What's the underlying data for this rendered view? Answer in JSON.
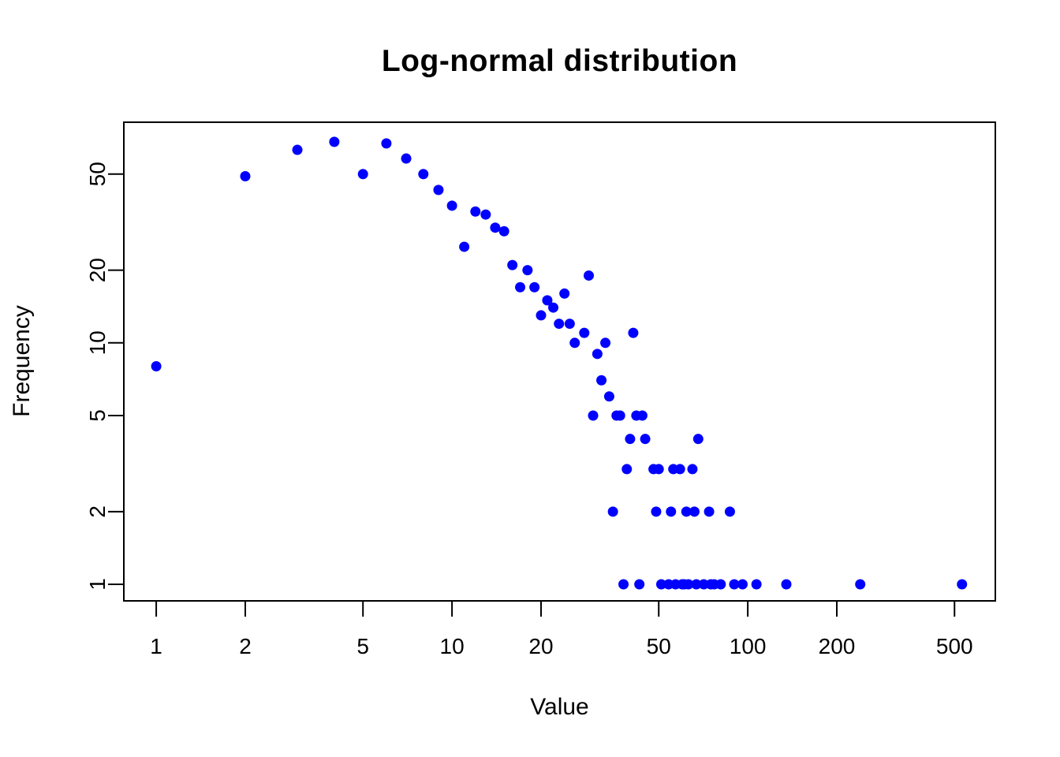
{
  "chart_data": {
    "type": "scatter",
    "title": "Log-normal distribution",
    "xlabel": "Value",
    "ylabel": "Frequency",
    "x_scale": "log",
    "y_scale": "log",
    "grid": false,
    "legend": null,
    "x_ticks": [
      1,
      2,
      5,
      10,
      20,
      50,
      100,
      200,
      500
    ],
    "y_ticks": [
      1,
      2,
      5,
      10,
      20,
      50
    ],
    "xlim": [
      0.777,
      687
    ],
    "ylim": [
      0.854,
      82
    ],
    "point_color": "#0000FF",
    "points": [
      [
        1,
        8
      ],
      [
        2,
        49
      ],
      [
        3,
        63
      ],
      [
        4,
        68
      ],
      [
        5,
        50
      ],
      [
        6,
        67
      ],
      [
        7,
        58
      ],
      [
        8,
        50
      ],
      [
        9,
        43
      ],
      [
        10,
        37
      ],
      [
        11,
        25
      ],
      [
        12,
        35
      ],
      [
        13,
        34
      ],
      [
        14,
        30
      ],
      [
        15,
        29
      ],
      [
        16,
        21
      ],
      [
        17,
        17
      ],
      [
        18,
        20
      ],
      [
        19,
        17
      ],
      [
        20,
        13
      ],
      [
        21,
        15
      ],
      [
        22,
        14
      ],
      [
        23,
        12
      ],
      [
        24,
        16
      ],
      [
        25,
        12
      ],
      [
        26,
        10
      ],
      [
        28,
        11
      ],
      [
        29,
        19
      ],
      [
        30,
        5
      ],
      [
        31,
        9
      ],
      [
        32,
        7
      ],
      [
        33,
        10
      ],
      [
        34,
        6
      ],
      [
        35,
        2
      ],
      [
        36,
        5
      ],
      [
        37,
        5
      ],
      [
        38,
        1
      ],
      [
        39,
        3
      ],
      [
        40,
        4
      ],
      [
        41,
        11
      ],
      [
        42,
        5
      ],
      [
        43,
        1
      ],
      [
        44,
        5
      ],
      [
        45,
        4
      ],
      [
        48,
        3
      ],
      [
        49,
        2
      ],
      [
        50,
        3
      ],
      [
        51,
        1
      ],
      [
        54,
        1
      ],
      [
        55,
        2
      ],
      [
        56,
        3
      ],
      [
        57,
        1
      ],
      [
        59,
        3
      ],
      [
        60,
        1
      ],
      [
        61,
        1
      ],
      [
        62,
        2
      ],
      [
        63,
        1
      ],
      [
        65,
        3
      ],
      [
        66,
        2
      ],
      [
        67,
        1
      ],
      [
        68,
        4
      ],
      [
        71,
        1
      ],
      [
        74,
        2
      ],
      [
        75,
        1
      ],
      [
        77,
        1
      ],
      [
        81,
        1
      ],
      [
        87,
        2
      ],
      [
        90,
        1
      ],
      [
        96,
        1
      ],
      [
        107,
        1
      ],
      [
        135,
        1
      ],
      [
        240,
        1
      ],
      [
        530,
        1
      ]
    ]
  }
}
